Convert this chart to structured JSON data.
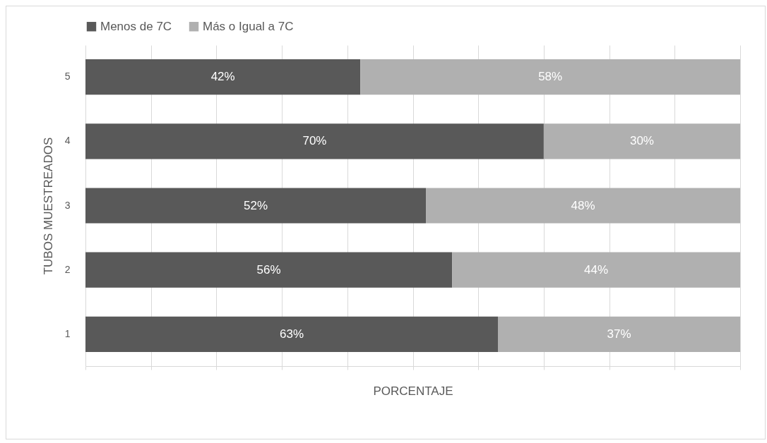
{
  "chart_data": {
    "type": "bar",
    "orientation": "horizontal",
    "stacked": true,
    "xlabel": "PORCENTAJE",
    "ylabel": "TUBOS MUESTREADOS",
    "categories": [
      "5",
      "4",
      "3",
      "2",
      "1"
    ],
    "series": [
      {
        "name": "Menos de 7C",
        "color": "#595959",
        "values": [
          42,
          70,
          52,
          56,
          63
        ],
        "value_labels": [
          "42%",
          "70%",
          "52%",
          "56%",
          "63%"
        ]
      },
      {
        "name": "Más o Igual a 7C",
        "color": "#b0b0b0",
        "values": [
          58,
          30,
          48,
          44,
          37
        ],
        "value_labels": [
          "58%",
          "30%",
          "48%",
          "44%",
          "37%"
        ]
      }
    ],
    "xlim": [
      0,
      100
    ],
    "xticks": [
      {
        "value": 0,
        "label": null
      },
      {
        "value": 10,
        "label": null
      },
      {
        "value": 20,
        "label": null
      },
      {
        "value": 30,
        "label": null
      },
      {
        "value": 40,
        "label": null
      },
      {
        "value": 50,
        "label": null
      },
      {
        "value": 60,
        "label": null
      },
      {
        "value": 70,
        "label": null
      },
      {
        "value": 80,
        "label": null
      },
      {
        "value": 90,
        "label": null
      },
      {
        "value": 100,
        "label": null
      }
    ],
    "tick_labels": "y",
    "grid": "x",
    "legend": "top"
  }
}
